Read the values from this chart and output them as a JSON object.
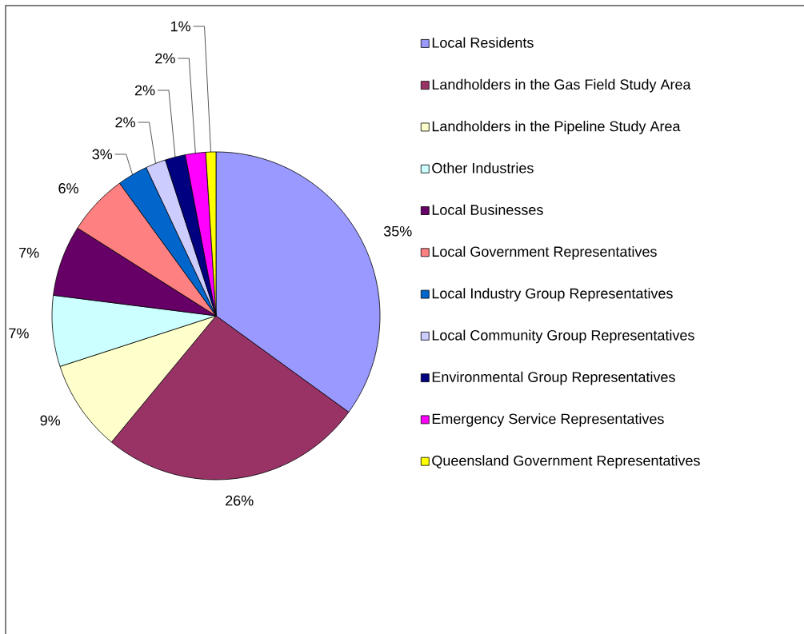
{
  "chart_data": {
    "type": "pie",
    "categories": [
      "Local Residents",
      "Landholders in the Gas Field Study Area",
      "Landholders in the Pipeline Study Area",
      "Other Industries",
      "Local Businesses",
      "Local Government Representatives",
      "Local Industry Group Representatives",
      "Local Community Group Representatives",
      "Environmental Group Representatives",
      "Emergency Service Representatives",
      "Queensland Government Representatives"
    ],
    "values": [
      35,
      26,
      9,
      7,
      7,
      6,
      3,
      2,
      2,
      2,
      1
    ],
    "value_labels": [
      "35%",
      "26%",
      "9%",
      "7%",
      "7%",
      "6%",
      "3%",
      "2%",
      "2%",
      "2%",
      "1%"
    ],
    "colors": [
      "#9999ff",
      "#993366",
      "#ffffcc",
      "#ccffff",
      "#660066",
      "#ff8080",
      "#0066cc",
      "#ccccff",
      "#000080",
      "#ff00ff",
      "#ffff00"
    ],
    "legend": "right"
  }
}
